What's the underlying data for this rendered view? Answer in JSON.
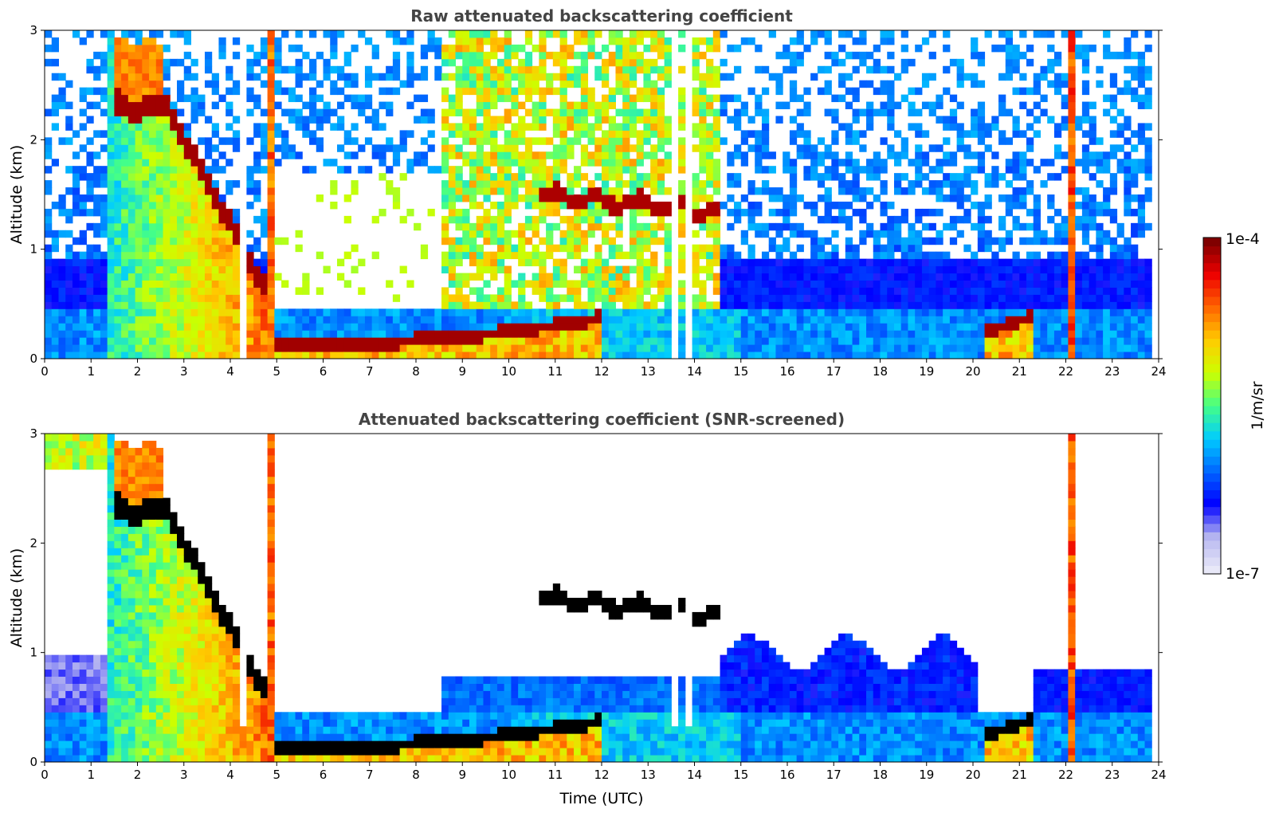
{
  "chart_data": [
    {
      "type": "heatmap",
      "title": "Raw attenuated backscattering coefficient",
      "xlabel": "",
      "ylabel": "Altitude (km)",
      "xlim": [
        0,
        24
      ],
      "ylim": [
        0,
        3
      ],
      "xticks": [
        "0",
        "1",
        "2",
        "3",
        "4",
        "5",
        "6",
        "7",
        "8",
        "9",
        "10",
        "11",
        "12",
        "13",
        "14",
        "15",
        "16",
        "17",
        "18",
        "19",
        "20",
        "21",
        "22",
        "23",
        "24"
      ],
      "yticks": [
        "0",
        "1",
        "2",
        "3"
      ],
      "data_end_time": 23.8,
      "features": [
        {
          "kind": "cloud_layer",
          "time_start": 1.5,
          "time_end": 2.5,
          "altitude_top": 2.5,
          "altitude_base": 2.2
        },
        {
          "kind": "cloud_descending",
          "time_start": 2.5,
          "time_end": 4.8,
          "altitude_from": 2.4,
          "altitude_to": 0.6
        },
        {
          "kind": "fog_layer",
          "time_start": 4.9,
          "time_end": 12.0,
          "altitude_from": 0.2,
          "altitude_to": 0.35
        },
        {
          "kind": "cloud_layer",
          "time_start": 10.7,
          "time_end": 14.6,
          "altitude_top": 1.6,
          "altitude_base": 1.3
        },
        {
          "kind": "low_cloud",
          "time_start": 20.2,
          "time_end": 21.3,
          "altitude_from": 0.2,
          "altitude_to": 0.4
        },
        {
          "kind": "cloud_column",
          "time": 22.1,
          "altitude_top": 3.0,
          "altitude_base": 0.0
        }
      ]
    },
    {
      "type": "heatmap",
      "title": "Attenuated backscattering coefficient (SNR-screened)",
      "xlabel": "Time (UTC)",
      "ylabel": "Altitude (km)",
      "xlim": [
        0,
        24
      ],
      "ylim": [
        0,
        3
      ],
      "xticks": [
        "0",
        "1",
        "2",
        "3",
        "4",
        "5",
        "6",
        "7",
        "8",
        "9",
        "10",
        "11",
        "12",
        "13",
        "14",
        "15",
        "16",
        "17",
        "18",
        "19",
        "20",
        "21",
        "22",
        "23",
        "24"
      ],
      "yticks": [
        "0",
        "1",
        "2",
        "3"
      ],
      "data_end_time": 23.8
    }
  ],
  "colorbar": {
    "label": "1/m/sr",
    "max_label": "1e-4",
    "min_label": "1e-7",
    "colors": [
      "#e8e8f8",
      "#b8b8f0",
      "#0000ff",
      "#0066ff",
      "#00ccff",
      "#44ff88",
      "#ccff00",
      "#ffcc00",
      "#ff6600",
      "#ee0000",
      "#800000"
    ]
  }
}
